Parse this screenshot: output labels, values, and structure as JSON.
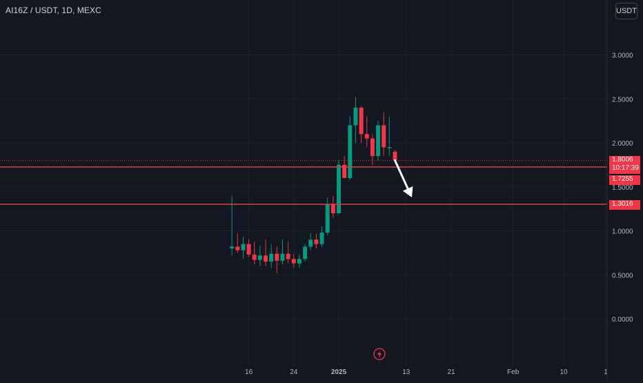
{
  "header": {
    "symbol_title": "AI16Z / USDT, 1D, MEXC",
    "currency_label": "USDT"
  },
  "colors": {
    "background": "#131722",
    "grid": "#1e222d",
    "up": "#089981",
    "down": "#f23645",
    "level_line": "#f23645",
    "axis_text": "#b2b5be",
    "arrow": "#ffffff"
  },
  "icons": {
    "bottom_logo": "lightning-bolt-icon"
  },
  "chart_data": {
    "type": "candlestick",
    "title": "AI16Z / USDT, 1D, MEXC",
    "y_axis": {
      "ticks": [
        "0.0000",
        "0.5000",
        "1.0000",
        "1.5000",
        "2.0000",
        "2.5000",
        "3.0000"
      ],
      "tick_values": [
        0,
        0.5,
        1.0,
        1.5,
        2.0,
        2.5,
        3.0
      ],
      "position": "right"
    },
    "x_axis": {
      "ticks": [
        {
          "label": "16",
          "date": "2024-12-16",
          "bold": false
        },
        {
          "label": "24",
          "date": "2024-12-24",
          "bold": false
        },
        {
          "label": "2025",
          "date": "2025-01-01",
          "bold": true
        },
        {
          "label": "13",
          "date": "2025-01-13",
          "bold": false
        },
        {
          "label": "21",
          "date": "2025-01-21",
          "bold": false
        },
        {
          "label": "Feb",
          "date": "2025-02-01",
          "bold": false
        },
        {
          "label": "10",
          "date": "2025-02-10",
          "bold": false
        },
        {
          "label": "1",
          "date": "2025-03-01",
          "bold": false
        }
      ]
    },
    "grid": true,
    "candles": [
      {
        "date": "2024-12-13",
        "open": 0.8,
        "high": 1.4,
        "low": 0.72,
        "close": 0.82
      },
      {
        "date": "2024-12-14",
        "open": 0.82,
        "high": 0.97,
        "low": 0.75,
        "close": 0.78
      },
      {
        "date": "2024-12-15",
        "open": 0.78,
        "high": 0.93,
        "low": 0.68,
        "close": 0.85
      },
      {
        "date": "2024-12-16",
        "open": 0.85,
        "high": 0.9,
        "low": 0.7,
        "close": 0.73
      },
      {
        "date": "2024-12-17",
        "open": 0.73,
        "high": 0.88,
        "low": 0.62,
        "close": 0.67
      },
      {
        "date": "2024-12-18",
        "open": 0.67,
        "high": 0.83,
        "low": 0.6,
        "close": 0.72
      },
      {
        "date": "2024-12-19",
        "open": 0.72,
        "high": 0.9,
        "low": 0.6,
        "close": 0.65
      },
      {
        "date": "2024-12-20",
        "open": 0.65,
        "high": 0.85,
        "low": 0.58,
        "close": 0.74
      },
      {
        "date": "2024-12-21",
        "open": 0.74,
        "high": 0.82,
        "low": 0.52,
        "close": 0.66
      },
      {
        "date": "2024-12-22",
        "open": 0.66,
        "high": 0.9,
        "low": 0.62,
        "close": 0.74
      },
      {
        "date": "2024-12-23",
        "open": 0.74,
        "high": 0.88,
        "low": 0.63,
        "close": 0.68
      },
      {
        "date": "2024-12-24",
        "open": 0.68,
        "high": 0.74,
        "low": 0.58,
        "close": 0.63
      },
      {
        "date": "2024-12-25",
        "open": 0.63,
        "high": 0.73,
        "low": 0.58,
        "close": 0.68
      },
      {
        "date": "2024-12-26",
        "open": 0.68,
        "high": 0.85,
        "low": 0.65,
        "close": 0.82
      },
      {
        "date": "2024-12-27",
        "open": 0.82,
        "high": 0.97,
        "low": 0.78,
        "close": 0.9
      },
      {
        "date": "2024-12-28",
        "open": 0.9,
        "high": 0.97,
        "low": 0.8,
        "close": 0.85
      },
      {
        "date": "2024-12-29",
        "open": 0.85,
        "high": 1.05,
        "low": 0.82,
        "close": 0.98
      },
      {
        "date": "2024-12-30",
        "open": 0.98,
        "high": 1.38,
        "low": 0.95,
        "close": 1.3
      },
      {
        "date": "2024-12-31",
        "open": 1.3,
        "high": 1.4,
        "low": 1.15,
        "close": 1.2
      },
      {
        "date": "2025-01-01",
        "open": 1.2,
        "high": 1.8,
        "low": 1.2,
        "close": 1.75
      },
      {
        "date": "2025-01-02",
        "open": 1.75,
        "high": 1.85,
        "low": 1.6,
        "close": 1.6
      },
      {
        "date": "2025-01-03",
        "open": 1.6,
        "high": 2.3,
        "low": 1.58,
        "close": 2.2
      },
      {
        "date": "2025-01-04",
        "open": 2.2,
        "high": 2.52,
        "low": 2.0,
        "close": 2.4
      },
      {
        "date": "2025-01-05",
        "open": 2.4,
        "high": 2.42,
        "low": 2.0,
        "close": 2.1
      },
      {
        "date": "2025-01-06",
        "open": 2.1,
        "high": 2.3,
        "low": 1.95,
        "close": 2.05
      },
      {
        "date": "2025-01-07",
        "open": 2.05,
        "high": 2.1,
        "low": 1.75,
        "close": 1.85
      },
      {
        "date": "2025-01-08",
        "open": 1.85,
        "high": 2.25,
        "low": 1.8,
        "close": 2.2
      },
      {
        "date": "2025-01-09",
        "open": 2.2,
        "high": 2.35,
        "low": 1.85,
        "close": 1.95
      },
      {
        "date": "2025-01-10",
        "open": 1.95,
        "high": 2.3,
        "low": 1.85,
        "close": 1.95
      },
      {
        "date": "2025-01-11",
        "open": 1.9,
        "high": 1.92,
        "low": 1.78,
        "close": 1.8006
      }
    ],
    "horizontal_levels": [
      {
        "value": 1.7255,
        "label": "1.7255"
      },
      {
        "value": 1.3016,
        "label": "1.3016"
      }
    ],
    "last_price": {
      "value": 1.8006,
      "label": "1.8006",
      "countdown": "10:17:39"
    },
    "annotation": {
      "type": "arrow",
      "direction": "down",
      "from": {
        "date": "2025-01-11",
        "price": 1.8
      },
      "to": {
        "date": "2025-01-14",
        "price": 1.38
      }
    }
  }
}
